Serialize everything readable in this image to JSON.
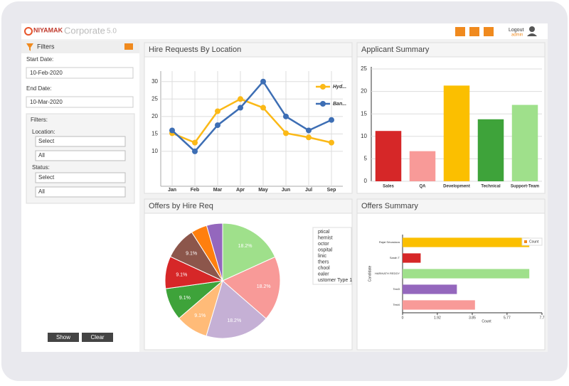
{
  "header": {
    "logo": "NIYAMAK",
    "product": "Corporate",
    "version": "5.0",
    "logout": "Logout",
    "user": "admin"
  },
  "filters": {
    "title": "Filters",
    "start_label": "Start Date:",
    "start_value": "10-Feb-2020",
    "end_label": "End Date:",
    "end_value": "10-Mar-2020",
    "section": "Filters:",
    "location_label": "Location:",
    "location_select": "Select",
    "location_value": "All",
    "status_label": "Status:",
    "status_select": "Select",
    "status_value": "All",
    "show": "Show",
    "clear": "Clear"
  },
  "chart_data": [
    {
      "type": "line",
      "title": "Hire Requests By Location",
      "categories": [
        "Jan",
        "Feb",
        "Mar",
        "Apr",
        "May",
        "Jun",
        "Jul",
        "Sep"
      ],
      "series": [
        {
          "name": "Hyd...",
          "color": "#fbb917",
          "values": [
            15.2,
            12.5,
            21.5,
            25,
            22.5,
            15.2,
            14,
            12.5
          ]
        },
        {
          "name": "Ban...",
          "color": "#3d6eb4",
          "values": [
            16,
            10,
            17.5,
            22.5,
            30,
            20,
            16,
            19
          ]
        }
      ],
      "ylim": [
        0,
        33
      ],
      "yticks": [
        10,
        15,
        20,
        25,
        30
      ],
      "grid": true
    },
    {
      "type": "bar",
      "title": "Applicant Summary",
      "categories": [
        "Sales",
        "QA",
        "Development",
        "Technical",
        "Support-Team"
      ],
      "values": [
        11.2,
        6.7,
        21.3,
        13.8,
        17
      ],
      "colors": [
        "#d62728",
        "#f89a98",
        "#fbbf00",
        "#3ea33a",
        "#9fe08b"
      ],
      "ylim": [
        0,
        25
      ],
      "yticks": [
        0,
        5,
        10,
        15,
        20,
        25
      ],
      "grid": true
    },
    {
      "type": "pie",
      "title": "Offers by Hire Req",
      "categories": [
        "ptical",
        "hemist",
        "octor",
        "ospital",
        "linic",
        "thers",
        "chool",
        "ealer",
        "ustomer Type 1"
      ],
      "values": [
        18.2,
        18.2,
        18.2,
        9.1,
        9.1,
        9.1,
        9.1,
        4.5,
        4.5
      ],
      "value_labels": [
        "18.2%",
        "18.2%",
        "18.2%",
        "9.1%",
        "9.1%",
        "9.1%",
        "9.1%",
        null,
        null
      ],
      "colors": [
        "#9fe08b",
        "#f89a98",
        "#c5b0d5",
        "#ffbb78",
        "#3ea33a",
        "#d62728",
        "#8c564b",
        "#ff7f0e",
        "#9467bd"
      ]
    },
    {
      "type": "hbar",
      "title": "Offers Summary",
      "categories": [
        "Rajat Srivastava",
        "Sarah T",
        "HARIKATH REDDY",
        "Test3",
        "Test4"
      ],
      "values": [
        7,
        1,
        7,
        3,
        4
      ],
      "colors": [
        "#fbbf00",
        "#d62728",
        "#9fe08b",
        "#9467bd",
        "#f89a98"
      ],
      "legend": "Count",
      "xlabel": "Count",
      "ylabel": "Candidate",
      "xlim": [
        0,
        7.7
      ],
      "xticks": [
        0,
        1.92,
        3.85,
        5.77,
        7.7
      ]
    }
  ]
}
